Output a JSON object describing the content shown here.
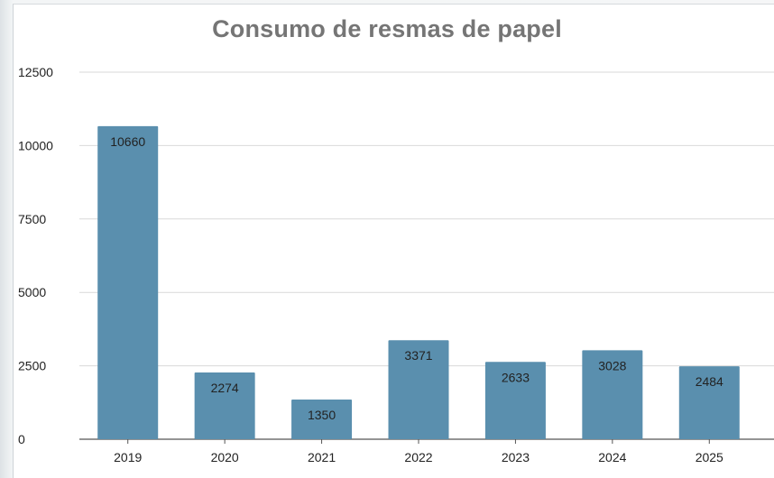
{
  "chart_data": {
    "type": "bar",
    "title": "Consumo de resmas de papel",
    "xlabel": "",
    "ylabel": "",
    "categories": [
      "2019",
      "2020",
      "2021",
      "2022",
      "2023",
      "2024",
      "2025"
    ],
    "series": [
      {
        "values": [
          10660,
          2274,
          1350,
          3371,
          2633,
          3028,
          2484
        ]
      }
    ],
    "ylim": [
      0,
      12500
    ],
    "yticks": [
      0,
      2500,
      5000,
      7500,
      10000,
      12500
    ],
    "grid": true,
    "legend": "none",
    "data_labels": [
      "10660",
      "2274",
      "1350",
      "3371",
      "2633",
      "3028",
      "2484"
    ],
    "colors": {
      "bar": "#5a8fae",
      "grid": "#d9d9d9",
      "axis": "#555555",
      "title": "#757575",
      "text": "#222222"
    }
  }
}
